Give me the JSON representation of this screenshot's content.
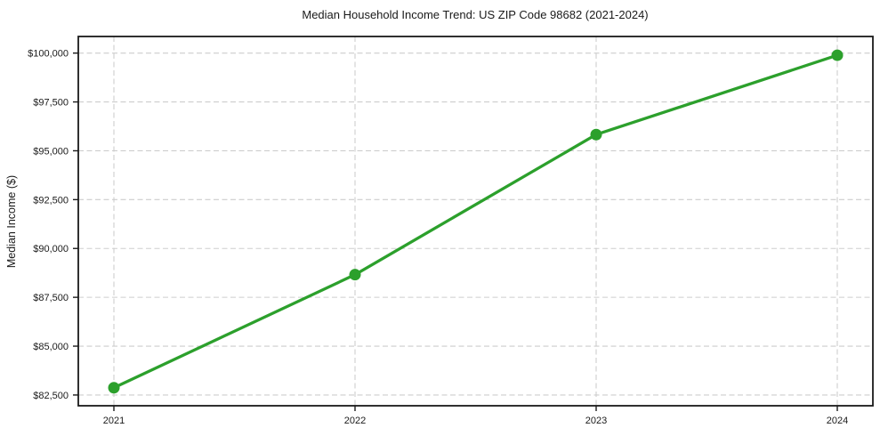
{
  "chart_data": {
    "type": "line",
    "title": "Median Household Income Trend: US ZIP Code 98682 (2021-2024)",
    "xlabel": "",
    "ylabel": "Median Income ($)",
    "categories": [
      "2021",
      "2022",
      "2023",
      "2024"
    ],
    "series": [
      {
        "name": "Median Household Income",
        "values": [
          82870,
          88660,
          95830,
          99890
        ]
      }
    ],
    "yticks": [
      {
        "value": 82500,
        "label": "$82,500"
      },
      {
        "value": 85000,
        "label": "$85,000"
      },
      {
        "value": 87500,
        "label": "$87,500"
      },
      {
        "value": 90000,
        "label": "$90,000"
      },
      {
        "value": 92500,
        "label": "$92,500"
      },
      {
        "value": 95000,
        "label": "$95,000"
      },
      {
        "value": 97500,
        "label": "$97,500"
      },
      {
        "value": 100000,
        "label": "$100,000"
      }
    ],
    "ylim": [
      81950,
      100850
    ],
    "grid": true,
    "grid_style": "dashed",
    "legend": "none",
    "marker": "circle",
    "colors": {
      "line": "#2ca02c",
      "marker": "#2ca02c",
      "grid": "#cdcdcd",
      "axis": "#1a1a1a",
      "text": "#1a1a1a",
      "background": "#ffffff"
    }
  }
}
